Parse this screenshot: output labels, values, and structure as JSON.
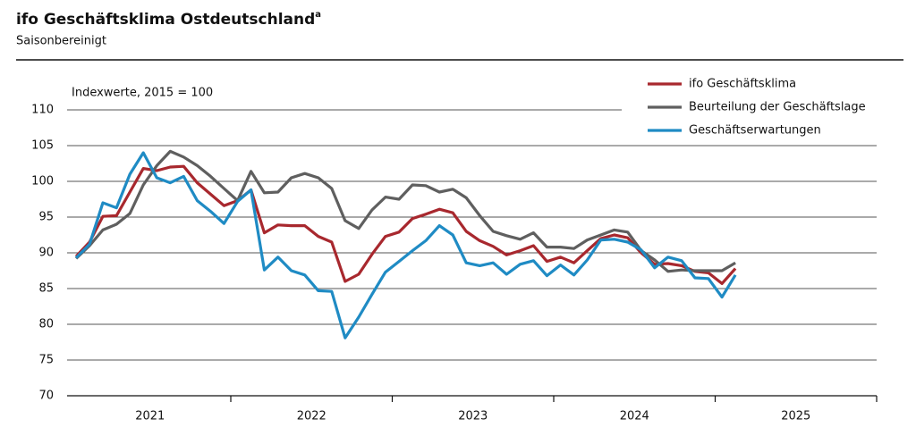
{
  "chart_data": {
    "type": "line",
    "title": "ifo Geschäftsklima Ostdeutschland",
    "title_superscript": "a",
    "subtitle": "Saisonbereinigt",
    "y_axis_label": "Indexwerte, 2015 = 100",
    "categories": [
      "2021",
      "2022",
      "2023",
      "2024",
      "2025"
    ],
    "x": [
      2021.042,
      2021.125,
      2021.208,
      2021.292,
      2021.375,
      2021.458,
      2021.542,
      2021.625,
      2021.708,
      2021.792,
      2021.875,
      2021.958,
      2022.042,
      2022.125,
      2022.208,
      2022.292,
      2022.375,
      2022.458,
      2022.542,
      2022.625,
      2022.708,
      2022.792,
      2022.875,
      2022.958,
      2023.042,
      2023.125,
      2023.208,
      2023.292,
      2023.375,
      2023.458,
      2023.542,
      2023.625,
      2023.708,
      2023.792,
      2023.875,
      2023.958,
      2024.042,
      2024.125,
      2024.208,
      2024.292,
      2024.375,
      2024.458,
      2024.542,
      2024.625,
      2024.708,
      2024.792,
      2024.875,
      2024.958,
      2025.042,
      2025.125
    ],
    "xlim": [
      2021,
      2026
    ],
    "xticks": [
      2022,
      2023,
      2024,
      2025,
      2026
    ],
    "ylim": [
      70,
      110
    ],
    "yticks": [
      70,
      75,
      80,
      85,
      90,
      95,
      100,
      105,
      110
    ],
    "grid": true,
    "legend": "top-right",
    "series": [
      {
        "name": "ifo Geschäftsklima",
        "color": "#a8282e",
        "values": [
          89.5,
          91.5,
          95.1,
          95.2,
          98.5,
          101.8,
          101.5,
          102.0,
          102.1,
          99.8,
          98.2,
          96.6,
          97.3,
          98.8,
          92.8,
          93.9,
          93.8,
          93.8,
          92.3,
          91.5,
          86.0,
          87.0,
          89.8,
          92.3,
          92.9,
          94.8,
          95.4,
          96.1,
          95.6,
          93.0,
          91.7,
          90.9,
          89.7,
          90.3,
          91.0,
          88.8,
          89.4,
          88.6,
          90.3,
          92.0,
          92.5,
          92.1,
          90.0,
          88.4,
          88.5,
          88.2,
          87.4,
          87.2,
          85.7,
          87.8
        ]
      },
      {
        "name": "Beurteilung der Geschäftslage",
        "color": "#5f5f5f",
        "values": [
          89.2,
          91.0,
          93.2,
          94.0,
          95.5,
          99.5,
          102.2,
          104.2,
          103.4,
          102.2,
          100.7,
          99.0,
          97.3,
          101.4,
          98.4,
          98.5,
          100.5,
          101.1,
          100.5,
          99.0,
          94.5,
          93.4,
          96.0,
          97.8,
          97.5,
          99.5,
          99.4,
          98.5,
          98.9,
          97.7,
          95.2,
          93.0,
          92.4,
          91.9,
          92.8,
          90.8,
          90.8,
          90.6,
          91.8,
          92.5,
          93.2,
          92.9,
          90.3,
          89.0,
          87.4,
          87.6,
          87.5,
          87.5,
          87.5,
          88.6
        ]
      },
      {
        "name": "Geschäftserwartungen",
        "color": "#1f8bc4",
        "values": [
          89.3,
          91.2,
          97.0,
          96.3,
          101.0,
          104.0,
          100.5,
          99.8,
          100.7,
          97.3,
          95.8,
          94.1,
          97.2,
          98.8,
          87.6,
          89.4,
          87.5,
          86.9,
          84.7,
          84.6,
          78.1,
          81.0,
          84.2,
          87.3,
          88.8,
          90.3,
          91.7,
          93.8,
          92.5,
          88.6,
          88.2,
          88.6,
          87.0,
          88.4,
          88.9,
          86.8,
          88.3,
          86.9,
          89.0,
          91.8,
          91.9,
          91.5,
          90.4,
          87.9,
          89.4,
          88.9,
          86.5,
          86.4,
          83.8,
          86.9
        ]
      }
    ]
  }
}
